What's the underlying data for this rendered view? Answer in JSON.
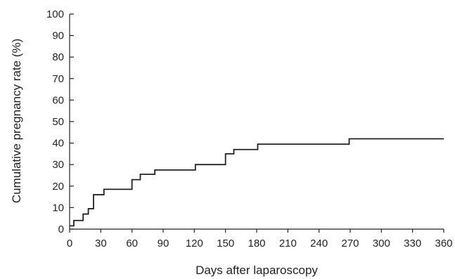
{
  "chart_data": {
    "type": "line",
    "title": "",
    "xlabel": "Days after laparoscopy",
    "ylabel": "Cumulative pregnancy rate (%)",
    "xlim": [
      0,
      360
    ],
    "ylim": [
      0,
      100
    ],
    "xticks": [
      0,
      30,
      60,
      90,
      120,
      150,
      180,
      210,
      240,
      270,
      300,
      330,
      360
    ],
    "yticks": [
      0,
      10,
      20,
      30,
      40,
      50,
      60,
      70,
      80,
      90,
      100
    ],
    "grid": false,
    "legend": "none",
    "line_color": "#222222",
    "series": [
      {
        "step": "post",
        "x": [
          0,
          4,
          13,
          18,
          23,
          33,
          60,
          68,
          82,
          121,
          150,
          158,
          181,
          269,
          360
        ],
        "y": [
          1.5,
          4,
          7,
          9.5,
          16,
          18.5,
          23,
          25.5,
          27.5,
          30,
          35,
          37,
          39.5,
          42,
          42
        ]
      }
    ]
  }
}
